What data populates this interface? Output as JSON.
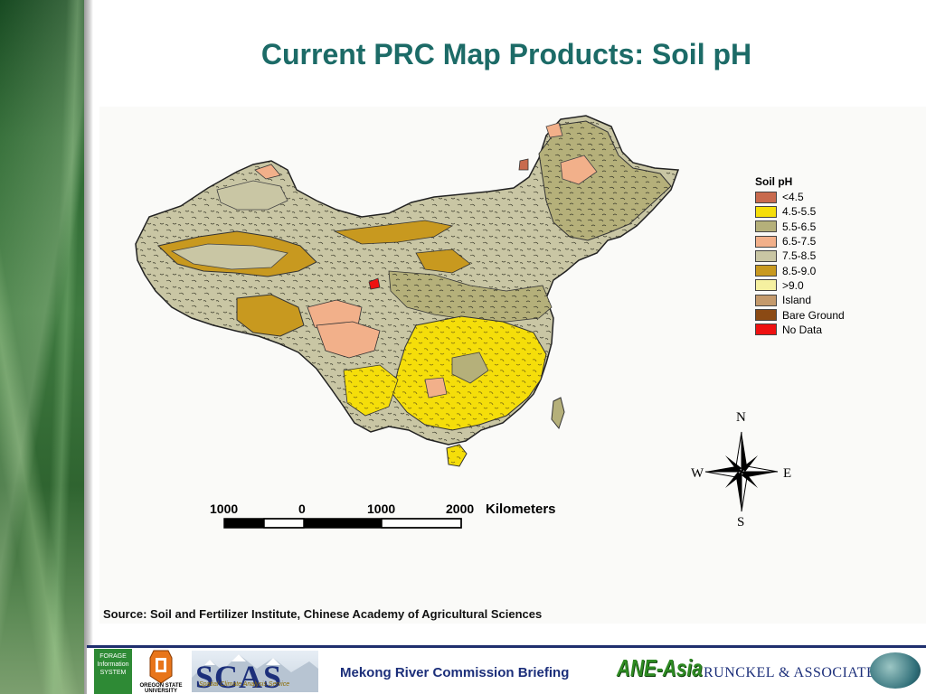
{
  "slide": {
    "title": "Current PRC Map Products: Soil pH",
    "source": "Source: Soil and Fertilizer Institute, Chinese Academy of Agricultural Sciences"
  },
  "map": {
    "legend_title": "Soil pH",
    "legend": [
      {
        "label": "<4.5",
        "color": "#c86a4e"
      },
      {
        "label": "4.5-5.5",
        "color": "#f5de0a"
      },
      {
        "label": "5.5-6.5",
        "color": "#b5b07a"
      },
      {
        "label": "6.5-7.5",
        "color": "#f2b08a"
      },
      {
        "label": "7.5-8.5",
        "color": "#c9c6a4"
      },
      {
        "label": "8.5-9.0",
        "color": "#c8991f"
      },
      {
        "label": ">9.0",
        "color": "#f5f0a0"
      },
      {
        "label": "Island",
        "color": "#c49a6c"
      },
      {
        "label": "Bare Ground",
        "color": "#8b4a14"
      },
      {
        "label": "No Data",
        "color": "#ee1111"
      }
    ],
    "scale_labels": [
      "1000",
      "0",
      "1000",
      "2000"
    ],
    "scale_unit": "Kilometers",
    "compass": {
      "n": "N",
      "s": "S",
      "e": "E",
      "w": "W"
    }
  },
  "footer": {
    "briefing": "Mekong River Commission Briefing",
    "forage_logo": "FORAGE Information SYSTEM",
    "osu_logo": "OREGON STATE UNIVERSITY",
    "scas_logo": "SCAS",
    "scas_sub": "Spatial Climate Analysis Service",
    "ane": "ANE-Asia",
    "runckel": "RUNCKEL & ASSOCIATES"
  }
}
